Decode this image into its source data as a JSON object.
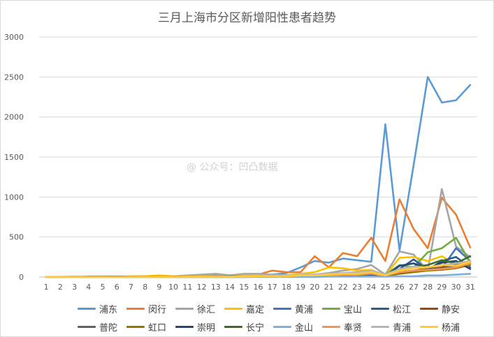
{
  "chart_data": {
    "type": "line",
    "title": "三月上海市分区新增阳性患者趋势",
    "watermark": "@ 公众号：凹凸数据",
    "x": [
      1,
      2,
      3,
      4,
      5,
      6,
      7,
      8,
      9,
      10,
      11,
      12,
      13,
      14,
      15,
      16,
      17,
      18,
      19,
      20,
      21,
      22,
      23,
      24,
      25,
      26,
      27,
      28,
      29,
      30,
      31
    ],
    "ylim": [
      0,
      3000
    ],
    "yticks": [
      0,
      500,
      1000,
      1500,
      2000,
      2500,
      3000
    ],
    "grid": true,
    "legend_position": "bottom",
    "series": [
      {
        "name": "浦东",
        "color": "#5b9bd5",
        "values": [
          0,
          0,
          0,
          2,
          2,
          5,
          5,
          8,
          10,
          5,
          10,
          15,
          20,
          15,
          20,
          25,
          30,
          50,
          120,
          200,
          180,
          230,
          210,
          190,
          1910,
          330,
          1400,
          2500,
          2180,
          2210,
          2400
        ]
      },
      {
        "name": "闵行",
        "color": "#ed7d31",
        "values": [
          0,
          0,
          0,
          0,
          0,
          0,
          2,
          5,
          5,
          5,
          10,
          10,
          10,
          10,
          20,
          30,
          80,
          60,
          60,
          260,
          120,
          300,
          260,
          490,
          200,
          970,
          600,
          360,
          990,
          780,
          370
        ]
      },
      {
        "name": "徐汇",
        "color": "#a5a5a5",
        "values": [
          0,
          0,
          0,
          0,
          5,
          5,
          5,
          10,
          10,
          10,
          20,
          30,
          40,
          20,
          40,
          40,
          30,
          20,
          30,
          30,
          50,
          80,
          100,
          150,
          30,
          320,
          280,
          80,
          1100,
          380,
          250
        ]
      },
      {
        "name": "嘉定",
        "color": "#ffc000",
        "values": [
          0,
          0,
          0,
          0,
          0,
          0,
          10,
          10,
          20,
          10,
          10,
          10,
          10,
          10,
          20,
          20,
          20,
          20,
          40,
          60,
          120,
          110,
          80,
          90,
          20,
          240,
          250,
          200,
          260,
          150,
          200
        ]
      },
      {
        "name": "黄浦",
        "color": "#4472c4",
        "values": [
          0,
          0,
          0,
          0,
          0,
          0,
          0,
          0,
          0,
          0,
          0,
          0,
          0,
          0,
          10,
          10,
          20,
          20,
          20,
          20,
          30,
          30,
          40,
          60,
          20,
          60,
          130,
          80,
          110,
          360,
          200
        ]
      },
      {
        "name": "宝山",
        "color": "#70ad47",
        "values": [
          0,
          2,
          5,
          2,
          0,
          0,
          0,
          0,
          0,
          0,
          0,
          0,
          0,
          0,
          5,
          10,
          10,
          10,
          10,
          20,
          20,
          20,
          40,
          60,
          30,
          150,
          120,
          310,
          360,
          490,
          180
        ]
      },
      {
        "name": "松江",
        "color": "#255e91",
        "values": [
          0,
          0,
          0,
          5,
          5,
          5,
          5,
          5,
          5,
          5,
          5,
          5,
          5,
          10,
          10,
          10,
          10,
          20,
          20,
          20,
          20,
          30,
          40,
          60,
          20,
          100,
          220,
          90,
          200,
          250,
          120
        ]
      },
      {
        "name": "静安",
        "color": "#9e480e",
        "values": [
          0,
          0,
          0,
          0,
          0,
          0,
          0,
          0,
          0,
          0,
          0,
          0,
          0,
          0,
          5,
          10,
          10,
          10,
          10,
          20,
          20,
          20,
          30,
          40,
          20,
          60,
          80,
          100,
          120,
          160,
          200
        ]
      },
      {
        "name": "普陀",
        "color": "#636363",
        "values": [
          0,
          0,
          0,
          0,
          0,
          0,
          0,
          0,
          0,
          0,
          0,
          0,
          0,
          0,
          5,
          5,
          10,
          10,
          10,
          20,
          20,
          20,
          30,
          40,
          20,
          50,
          80,
          90,
          110,
          130,
          170
        ]
      },
      {
        "name": "虹口",
        "color": "#997300",
        "values": [
          0,
          0,
          0,
          0,
          0,
          0,
          0,
          0,
          0,
          0,
          0,
          0,
          0,
          0,
          5,
          5,
          5,
          10,
          10,
          10,
          20,
          20,
          20,
          30,
          10,
          40,
          60,
          80,
          90,
          110,
          150
        ]
      },
      {
        "name": "崇明",
        "color": "#264478",
        "values": [
          0,
          0,
          0,
          0,
          0,
          0,
          0,
          0,
          0,
          0,
          0,
          0,
          0,
          0,
          0,
          5,
          5,
          5,
          10,
          10,
          10,
          20,
          20,
          30,
          10,
          140,
          170,
          100,
          180,
          200,
          100
        ]
      },
      {
        "name": "长宁",
        "color": "#43682b",
        "values": [
          0,
          0,
          0,
          0,
          0,
          0,
          0,
          0,
          0,
          0,
          0,
          0,
          0,
          0,
          5,
          5,
          5,
          10,
          10,
          10,
          20,
          20,
          20,
          40,
          10,
          80,
          120,
          150,
          210,
          170,
          260
        ]
      },
      {
        "name": "金山",
        "color": "#7cafdd",
        "values": [
          0,
          0,
          0,
          0,
          0,
          0,
          0,
          0,
          0,
          0,
          0,
          0,
          0,
          0,
          0,
          0,
          0,
          0,
          0,
          0,
          5,
          5,
          5,
          5,
          5,
          10,
          10,
          20,
          20,
          30,
          40
        ]
      },
      {
        "name": "奉贤",
        "color": "#f1975a",
        "values": [
          0,
          0,
          0,
          0,
          0,
          0,
          5,
          5,
          5,
          5,
          5,
          5,
          5,
          5,
          10,
          10,
          10,
          10,
          20,
          20,
          20,
          30,
          30,
          40,
          20,
          60,
          80,
          90,
          100,
          120,
          170
        ]
      },
      {
        "name": "青浦",
        "color": "#b7b7b7",
        "values": [
          0,
          0,
          0,
          0,
          0,
          0,
          0,
          0,
          0,
          0,
          5,
          5,
          5,
          5,
          10,
          10,
          20,
          20,
          30,
          30,
          40,
          50,
          60,
          80,
          30,
          100,
          130,
          120,
          150,
          170,
          200
        ]
      },
      {
        "name": "杨浦",
        "color": "#ffcd33",
        "values": [
          0,
          0,
          0,
          0,
          0,
          0,
          0,
          0,
          0,
          0,
          0,
          0,
          0,
          0,
          5,
          10,
          10,
          10,
          20,
          20,
          30,
          40,
          40,
          60,
          20,
          80,
          110,
          120,
          150,
          140,
          190
        ]
      }
    ]
  }
}
